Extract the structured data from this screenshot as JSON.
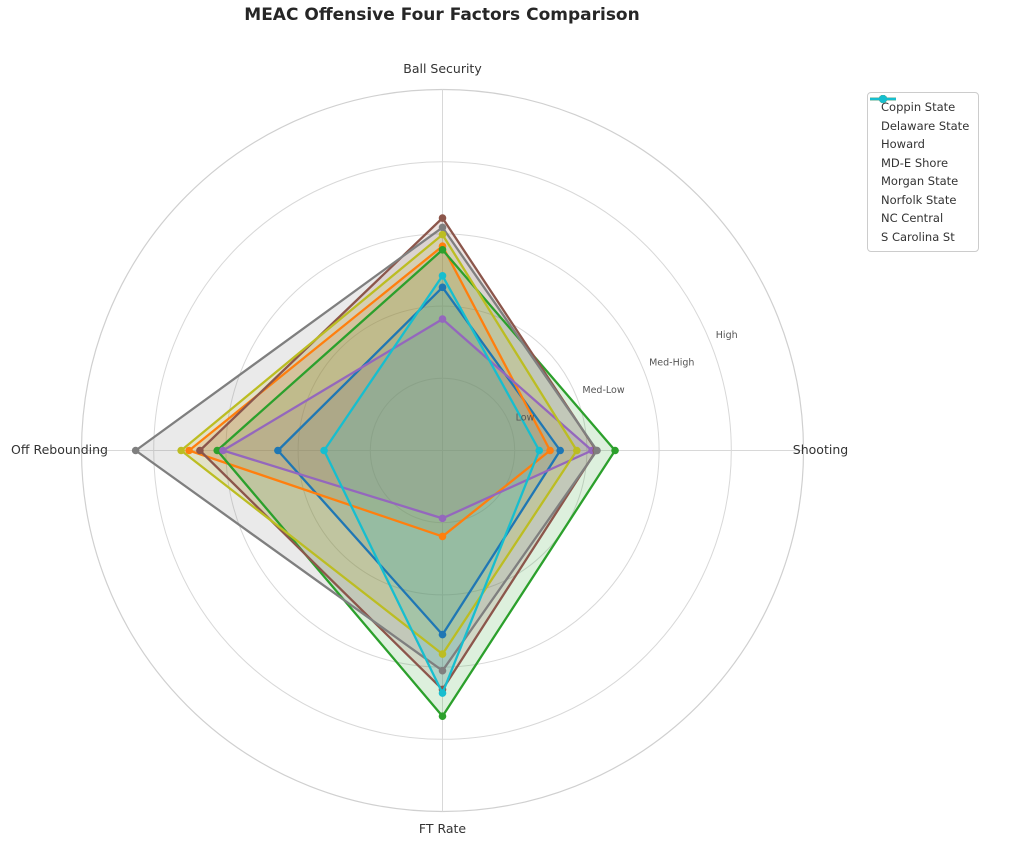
{
  "title": "MEAC Offensive Four Factors Comparison",
  "background": "#ffffff",
  "chart_data": {
    "type": "radar",
    "title": "MEAC Offensive Four Factors Comparison",
    "axes": [
      {
        "label": "Ball Security",
        "angle_deg": 90
      },
      {
        "label": "Shooting",
        "angle_deg": 0
      },
      {
        "label": "FT Rate",
        "angle_deg": 270
      },
      {
        "label": "Off Rebounding",
        "angle_deg": 180
      }
    ],
    "value_order": [
      "Ball Security",
      "Shooting",
      "FT Rate",
      "Off Rebounding"
    ],
    "radial_ticks": {
      "labels": [
        "Low",
        "Med-Low",
        "Med-High",
        "High"
      ],
      "values": [
        1,
        2,
        3,
        4
      ],
      "label_angle_deg": 22.5
    },
    "rlim": [
      0,
      5
    ],
    "grid": true,
    "legend_position": "upper right",
    "series": [
      {
        "name": "Coppin State",
        "color": "#1f77b4",
        "values": [
          2.26,
          1.63,
          2.55,
          2.28
        ]
      },
      {
        "name": "Delaware State",
        "color": "#ff7f0e",
        "values": [
          2.83,
          1.49,
          1.19,
          3.51
        ]
      },
      {
        "name": "Howard",
        "color": "#2ca02c",
        "values": [
          2.78,
          2.39,
          3.68,
          3.12
        ]
      },
      {
        "name": "MD-E Shore",
        "color": "#9467bd",
        "values": [
          1.82,
          2.07,
          0.94,
          3.04
        ]
      },
      {
        "name": "Morgan State",
        "color": "#8c564b",
        "values": [
          3.22,
          2.13,
          3.31,
          3.36
        ]
      },
      {
        "name": "Norfolk State",
        "color": "#7f7f7f",
        "values": [
          3.09,
          2.14,
          3.05,
          4.25
        ]
      },
      {
        "name": "NC Central",
        "color": "#bcbd22",
        "values": [
          2.99,
          1.86,
          2.82,
          3.62
        ]
      },
      {
        "name": "S Carolina St",
        "color": "#17becf",
        "values": [
          2.42,
          1.34,
          3.36,
          1.64
        ]
      }
    ],
    "style": {
      "fill_opacity": 0.16,
      "line_width": 2.3,
      "marker_radius": 3.8,
      "grid_color": "#d8d8d8",
      "spine_color": "#d0d0d0",
      "axis_label_color": "#333333",
      "radial_tick_color": "#555555",
      "title_color": "#262626"
    }
  }
}
